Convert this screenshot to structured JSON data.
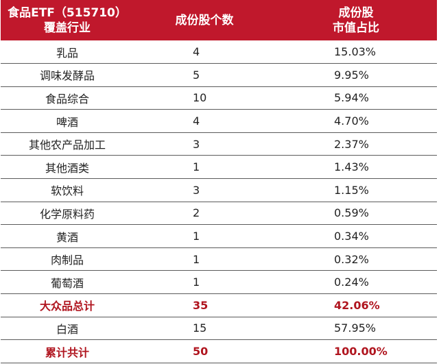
{
  "header": {
    "col1_line1": "食品ETF（515710）",
    "col1_line2": "覆盖行业",
    "col2": "成份股个数",
    "col3_line1": "成份股",
    "col3_line2": "市值占比"
  },
  "rows": [
    {
      "industry": "乳品",
      "count": "4",
      "share": "15.03%",
      "summary": false
    },
    {
      "industry": "调味发酵品",
      "count": "5",
      "share": "9.95%",
      "summary": false
    },
    {
      "industry": "食品综合",
      "count": "10",
      "share": "5.94%",
      "summary": false
    },
    {
      "industry": "啤酒",
      "count": "4",
      "share": "4.70%",
      "summary": false
    },
    {
      "industry": "其他农产品加工",
      "count": "3",
      "share": "2.37%",
      "summary": false
    },
    {
      "industry": "其他酒类",
      "count": "1",
      "share": "1.43%",
      "summary": false
    },
    {
      "industry": "软饮料",
      "count": "3",
      "share": "1.15%",
      "summary": false
    },
    {
      "industry": "化学原料药",
      "count": "2",
      "share": "0.59%",
      "summary": false
    },
    {
      "industry": "黄酒",
      "count": "1",
      "share": "0.34%",
      "summary": false
    },
    {
      "industry": "肉制品",
      "count": "1",
      "share": "0.32%",
      "summary": false
    },
    {
      "industry": "葡萄酒",
      "count": "1",
      "share": "0.24%",
      "summary": false
    },
    {
      "industry": "大众品总计",
      "count": "35",
      "share": "42.06%",
      "summary": true
    },
    {
      "industry": "白酒",
      "count": "15",
      "share": "57.95%",
      "summary": false
    },
    {
      "industry": "累计共计",
      "count": "50",
      "share": "100.00%",
      "summary": true
    }
  ],
  "colors": {
    "header_bg": "#c0182c",
    "header_text": "#ffffff",
    "summary_text": "#b0151f"
  }
}
